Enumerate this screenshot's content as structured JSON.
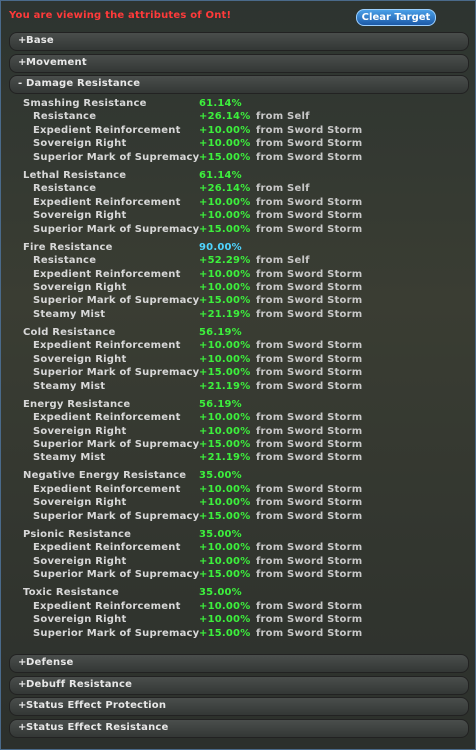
{
  "header": {
    "title": "You are viewing the attributes of Ont!",
    "button": "Clear Target"
  },
  "sections_top": [
    {
      "toggle": "+",
      "label": "Base"
    },
    {
      "toggle": "+",
      "label": "Movement"
    },
    {
      "toggle": "-",
      "label": "Damage Resistance"
    }
  ],
  "groups": [
    {
      "name": "Smashing Resistance",
      "total": "61.14%",
      "color": "#3cf03c",
      "rows": [
        {
          "name": "Resistance",
          "value": "+26.14%",
          "source": "from Self"
        },
        {
          "name": "Expedient Reinforcement",
          "value": "+10.00%",
          "source": "from Sword Storm"
        },
        {
          "name": "Sovereign Right",
          "value": "+10.00%",
          "source": "from Sword Storm"
        },
        {
          "name": "Superior Mark of Supremacy",
          "value": "+15.00%",
          "source": "from Sword Storm"
        }
      ]
    },
    {
      "name": "Lethal Resistance",
      "total": "61.14%",
      "color": "#3cf03c",
      "rows": [
        {
          "name": "Resistance",
          "value": "+26.14%",
          "source": "from Self"
        },
        {
          "name": "Expedient Reinforcement",
          "value": "+10.00%",
          "source": "from Sword Storm"
        },
        {
          "name": "Sovereign Right",
          "value": "+10.00%",
          "source": "from Sword Storm"
        },
        {
          "name": "Superior Mark of Supremacy",
          "value": "+15.00%",
          "source": "from Sword Storm"
        }
      ]
    },
    {
      "name": "Fire Resistance",
      "total": "90.00%",
      "color": "#4fd4ff",
      "rows": [
        {
          "name": "Resistance",
          "value": "+52.29%",
          "source": "from Self"
        },
        {
          "name": "Expedient Reinforcement",
          "value": "+10.00%",
          "source": "from Sword Storm"
        },
        {
          "name": "Sovereign Right",
          "value": "+10.00%",
          "source": "from Sword Storm"
        },
        {
          "name": "Superior Mark of Supremacy",
          "value": "+15.00%",
          "source": "from Sword Storm"
        },
        {
          "name": "Steamy Mist",
          "value": "+21.19%",
          "source": "from Sword Storm"
        }
      ]
    },
    {
      "name": "Cold Resistance",
      "total": "56.19%",
      "color": "#3cf03c",
      "rows": [
        {
          "name": "Expedient Reinforcement",
          "value": "+10.00%",
          "source": "from Sword Storm"
        },
        {
          "name": "Sovereign Right",
          "value": "+10.00%",
          "source": "from Sword Storm"
        },
        {
          "name": "Superior Mark of Supremacy",
          "value": "+15.00%",
          "source": "from Sword Storm"
        },
        {
          "name": "Steamy Mist",
          "value": "+21.19%",
          "source": "from Sword Storm"
        }
      ]
    },
    {
      "name": "Energy Resistance",
      "total": "56.19%",
      "color": "#3cf03c",
      "rows": [
        {
          "name": "Expedient Reinforcement",
          "value": "+10.00%",
          "source": "from Sword Storm"
        },
        {
          "name": "Sovereign Right",
          "value": "+10.00%",
          "source": "from Sword Storm"
        },
        {
          "name": "Superior Mark of Supremacy",
          "value": "+15.00%",
          "source": "from Sword Storm"
        },
        {
          "name": "Steamy Mist",
          "value": "+21.19%",
          "source": "from Sword Storm"
        }
      ]
    },
    {
      "name": "Negative Energy Resistance",
      "total": "35.00%",
      "color": "#3cf03c",
      "rows": [
        {
          "name": "Expedient Reinforcement",
          "value": "+10.00%",
          "source": "from Sword Storm"
        },
        {
          "name": "Sovereign Right",
          "value": "+10.00%",
          "source": "from Sword Storm"
        },
        {
          "name": "Superior Mark of Supremacy",
          "value": "+15.00%",
          "source": "from Sword Storm"
        }
      ]
    },
    {
      "name": "Psionic Resistance",
      "total": "35.00%",
      "color": "#3cf03c",
      "rows": [
        {
          "name": "Expedient Reinforcement",
          "value": "+10.00%",
          "source": "from Sword Storm"
        },
        {
          "name": "Sovereign Right",
          "value": "+10.00%",
          "source": "from Sword Storm"
        },
        {
          "name": "Superior Mark of Supremacy",
          "value": "+15.00%",
          "source": "from Sword Storm"
        }
      ]
    },
    {
      "name": "Toxic Resistance",
      "total": "35.00%",
      "color": "#3cf03c",
      "rows": [
        {
          "name": "Expedient Reinforcement",
          "value": "+10.00%",
          "source": "from Sword Storm"
        },
        {
          "name": "Sovereign Right",
          "value": "+10.00%",
          "source": "from Sword Storm"
        },
        {
          "name": "Superior Mark of Supremacy",
          "value": "+15.00%",
          "source": "from Sword Storm"
        }
      ]
    }
  ],
  "sections_bottom": [
    {
      "toggle": "+",
      "label": "Defense"
    },
    {
      "toggle": "+",
      "label": "Debuff Resistance"
    },
    {
      "toggle": "+",
      "label": "Status Effect Protection"
    },
    {
      "toggle": "+",
      "label": "Status Effect Resistance"
    }
  ]
}
